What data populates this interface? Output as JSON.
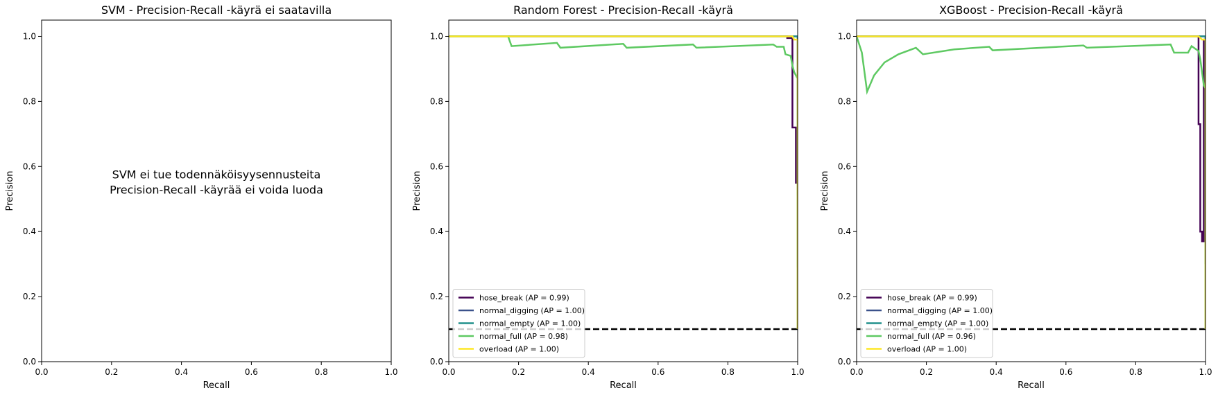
{
  "chart_data": [
    {
      "type": "line",
      "title": "SVM - Precision-Recall -käyrä ei saatavilla",
      "xlabel": "Recall",
      "ylabel": "Precision",
      "xlim": [
        0,
        1
      ],
      "ylim": [
        0,
        1.05
      ],
      "x_ticks": [
        "0.0",
        "0.2",
        "0.4",
        "0.6",
        "0.8",
        "1.0"
      ],
      "y_ticks": [
        "0.0",
        "0.2",
        "0.4",
        "0.6",
        "0.8",
        "1.0"
      ],
      "annotation": [
        "SVM ei tue todennäköisyysennusteita",
        "Precision-Recall -käyrää ei voida luoda"
      ],
      "series": [],
      "baseline": null,
      "legend": null
    },
    {
      "type": "line",
      "title": "Random Forest - Precision-Recall -käyrä",
      "xlabel": "Recall",
      "ylabel": "Precision",
      "xlim": [
        0,
        1
      ],
      "ylim": [
        0,
        1.05
      ],
      "x_ticks": [
        "0.0",
        "0.2",
        "0.4",
        "0.6",
        "0.8",
        "1.0"
      ],
      "y_ticks": [
        "0.0",
        "0.2",
        "0.4",
        "0.6",
        "0.8",
        "1.0"
      ],
      "legend": "lower-left",
      "baseline": 0.1,
      "series": [
        {
          "name": "hose_break (AP = 0.99)",
          "color": "#440154",
          "points": [
            [
              0,
              1
            ],
            [
              0.97,
              1
            ],
            [
              0.97,
              0.995
            ],
            [
              0.985,
              0.995
            ],
            [
              0.985,
              0.72
            ],
            [
              0.995,
              0.72
            ],
            [
              0.995,
              0.55
            ],
            [
              1.0,
              0.55
            ],
            [
              1.0,
              0.51
            ]
          ]
        },
        {
          "name": "normal_digging (AP = 1.00)",
          "color": "#3b528b",
          "points": [
            [
              0,
              1
            ],
            [
              0.995,
              1
            ],
            [
              1.0,
              1
            ],
            [
              1.0,
              0.1
            ]
          ]
        },
        {
          "name": "normal_empty (AP = 1.00)",
          "color": "#21918c",
          "points": [
            [
              0,
              1
            ],
            [
              0.995,
              1
            ],
            [
              1.0,
              1
            ],
            [
              1.0,
              0.29
            ]
          ]
        },
        {
          "name": "normal_full (AP = 0.98)",
          "color": "#5ec962",
          "points": [
            [
              0,
              1
            ],
            [
              0.17,
              1
            ],
            [
              0.18,
              0.97
            ],
            [
              0.31,
              0.98
            ],
            [
              0.32,
              0.965
            ],
            [
              0.5,
              0.977
            ],
            [
              0.51,
              0.965
            ],
            [
              0.7,
              0.975
            ],
            [
              0.71,
              0.965
            ],
            [
              0.93,
              0.975
            ],
            [
              0.94,
              0.968
            ],
            [
              0.96,
              0.968
            ],
            [
              0.965,
              0.945
            ],
            [
              0.98,
              0.94
            ],
            [
              0.985,
              0.91
            ],
            [
              0.99,
              0.89
            ],
            [
              0.995,
              0.88
            ],
            [
              1.0,
              0.87
            ],
            [
              1.0,
              0.1
            ]
          ]
        },
        {
          "name": "overload (AP = 1.00)",
          "color": "#fde725",
          "points": [
            [
              0,
              1
            ],
            [
              0.985,
              1
            ],
            [
              0.99,
              0.99
            ],
            [
              1.0,
              0.99
            ],
            [
              1.0,
              0.1
            ]
          ]
        }
      ]
    },
    {
      "type": "line",
      "title": "XGBoost - Precision-Recall -käyrä",
      "xlabel": "Recall",
      "ylabel": "Precision",
      "xlim": [
        0,
        1
      ],
      "ylim": [
        0,
        1.05
      ],
      "x_ticks": [
        "0.0",
        "0.2",
        "0.4",
        "0.6",
        "0.8",
        "1.0"
      ],
      "y_ticks": [
        "0.0",
        "0.2",
        "0.4",
        "0.6",
        "0.8",
        "1.0"
      ],
      "legend": "lower-left",
      "baseline": 0.1,
      "series": [
        {
          "name": "hose_break (AP = 0.99)",
          "color": "#440154",
          "points": [
            [
              0,
              1
            ],
            [
              0.98,
              1
            ],
            [
              0.98,
              0.73
            ],
            [
              0.985,
              0.73
            ],
            [
              0.985,
              0.4
            ],
            [
              0.99,
              0.4
            ],
            [
              0.99,
              0.37
            ],
            [
              0.995,
              0.37
            ],
            [
              0.995,
              0.99
            ],
            [
              1.0,
              0.99
            ],
            [
              1.0,
              0.3
            ]
          ]
        },
        {
          "name": "normal_digging (AP = 1.00)",
          "color": "#3b528b",
          "points": [
            [
              0,
              1
            ],
            [
              0.995,
              1
            ],
            [
              1.0,
              1
            ],
            [
              1.0,
              0.1
            ]
          ]
        },
        {
          "name": "normal_empty (AP = 1.00)",
          "color": "#21918c",
          "points": [
            [
              0,
              1
            ],
            [
              0.995,
              1
            ],
            [
              1.0,
              1
            ],
            [
              1.0,
              0.3
            ]
          ]
        },
        {
          "name": "normal_full (AP = 0.96)",
          "color": "#5ec962",
          "points": [
            [
              0,
              1
            ],
            [
              0.015,
              0.95
            ],
            [
              0.03,
              0.83
            ],
            [
              0.05,
              0.88
            ],
            [
              0.08,
              0.92
            ],
            [
              0.12,
              0.945
            ],
            [
              0.17,
              0.965
            ],
            [
              0.19,
              0.945
            ],
            [
              0.28,
              0.96
            ],
            [
              0.38,
              0.968
            ],
            [
              0.39,
              0.957
            ],
            [
              0.65,
              0.972
            ],
            [
              0.66,
              0.965
            ],
            [
              0.9,
              0.975
            ],
            [
              0.91,
              0.95
            ],
            [
              0.95,
              0.95
            ],
            [
              0.96,
              0.97
            ],
            [
              0.98,
              0.955
            ],
            [
              0.985,
              0.93
            ],
            [
              0.99,
              0.89
            ],
            [
              0.995,
              0.85
            ],
            [
              1.0,
              0.84
            ],
            [
              1.0,
              0.1
            ]
          ]
        },
        {
          "name": "overload (AP = 1.00)",
          "color": "#fde725",
          "points": [
            [
              0,
              1
            ],
            [
              0.98,
              1
            ],
            [
              0.99,
              0.99
            ],
            [
              1.0,
              0.99
            ],
            [
              1.0,
              0.1
            ]
          ]
        }
      ]
    }
  ]
}
